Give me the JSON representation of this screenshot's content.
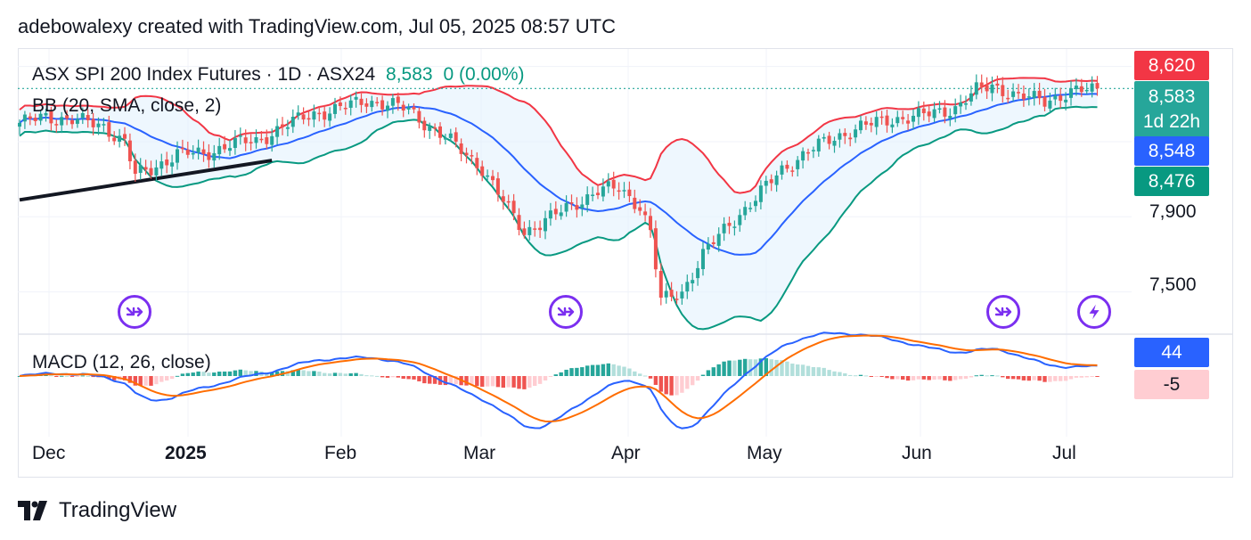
{
  "header": {
    "text": "adebowalexy created with TradingView.com, Jul 05, 2025 08:57 UTC"
  },
  "legend": {
    "symbol": "ASX SPI 200 Index Futures · 1D · ASX24",
    "last": "8,583",
    "change": "0 (0.00%)",
    "bb": "BB (20, SMA, close, 2)",
    "macd": "MACD (12, 26, close)"
  },
  "price_tags": {
    "bb_upper": {
      "value": "8,620",
      "color": "#f23645"
    },
    "last": {
      "value": "8,583",
      "countdown": "1d 22h",
      "color": "#26a69a"
    },
    "bb_basis": {
      "value": "8,548",
      "color": "#2962ff"
    },
    "bb_lower": {
      "value": "8,476",
      "color": "#089981"
    },
    "macd": {
      "value": "44",
      "color": "#2962ff"
    },
    "hist": {
      "value": "-5",
      "color": "#ffcdd2"
    }
  },
  "y_axis_labels": [
    "7,900",
    "7,500"
  ],
  "x_axis_labels": [
    "Dec",
    "2025",
    "Feb",
    "Mar",
    "Apr",
    "May",
    "Jun",
    "Jul"
  ],
  "footer": {
    "brand": "TradingView"
  },
  "icons": [
    "forward-arrow-icon",
    "forward-arrow-icon",
    "forward-arrow-icon",
    "lightning-icon"
  ],
  "colors": {
    "up": "#26a69a",
    "down": "#ef5350",
    "bb_upper": "#f23645",
    "bb_basis": "#2962ff",
    "bb_lower": "#089981",
    "bb_fill": "#e3f2fd",
    "macd": "#2962ff",
    "signal": "#ff6d00",
    "marker": "#7b2ff0"
  },
  "chart_data": {
    "type": "candlestick",
    "title": "ASX SPI 200 Index Futures · 1D · ASX24",
    "price_range": [
      7280,
      8760
    ],
    "x_ticks": [
      "Dec",
      "2025",
      "Feb",
      "Mar",
      "Apr",
      "May",
      "Jun",
      "Jul"
    ],
    "close_anchors": [
      [
        0,
        8400
      ],
      [
        5,
        8430
      ],
      [
        10,
        8420
      ],
      [
        16,
        8380
      ],
      [
        20,
        8300
      ],
      [
        22,
        8120
      ],
      [
        25,
        8150
      ],
      [
        30,
        8240
      ],
      [
        35,
        8230
      ],
      [
        40,
        8290
      ],
      [
        45,
        8300
      ],
      [
        50,
        8380
      ],
      [
        56,
        8450
      ],
      [
        60,
        8470
      ],
      [
        66,
        8520
      ],
      [
        70,
        8500
      ],
      [
        74,
        8470
      ],
      [
        78,
        8380
      ],
      [
        82,
        8300
      ],
      [
        88,
        8160
      ],
      [
        92,
        7980
      ],
      [
        96,
        7820
      ],
      [
        100,
        7880
      ],
      [
        105,
        7960
      ],
      [
        110,
        8040
      ],
      [
        114,
        8050
      ],
      [
        118,
        7960
      ],
      [
        120,
        7820
      ],
      [
        122,
        7450
      ],
      [
        126,
        7500
      ],
      [
        130,
        7700
      ],
      [
        135,
        7860
      ],
      [
        140,
        8000
      ],
      [
        145,
        8150
      ],
      [
        150,
        8250
      ],
      [
        155,
        8320
      ],
      [
        160,
        8380
      ],
      [
        166,
        8420
      ],
      [
        172,
        8440
      ],
      [
        178,
        8480
      ],
      [
        182,
        8570
      ],
      [
        185,
        8600
      ],
      [
        190,
        8540
      ],
      [
        195,
        8520
      ],
      [
        200,
        8560
      ],
      [
        205,
        8583
      ]
    ],
    "macd_range": [
      -170,
      110
    ],
    "series": [
      {
        "name": "BB (20, SMA, close, 2)",
        "values": []
      },
      {
        "name": "MACD (12, 26, close)",
        "values": []
      }
    ],
    "last_price": 8583,
    "bollinger_last": {
      "upper": 8620,
      "basis": 8548,
      "lower": 8476
    },
    "macd_last": 44,
    "histogram_last": -5,
    "trendline": [
      [
        0,
        7990
      ],
      [
        48,
        8200
      ]
    ],
    "event_markers_at": [
      22,
      103,
      182,
      201
    ]
  }
}
